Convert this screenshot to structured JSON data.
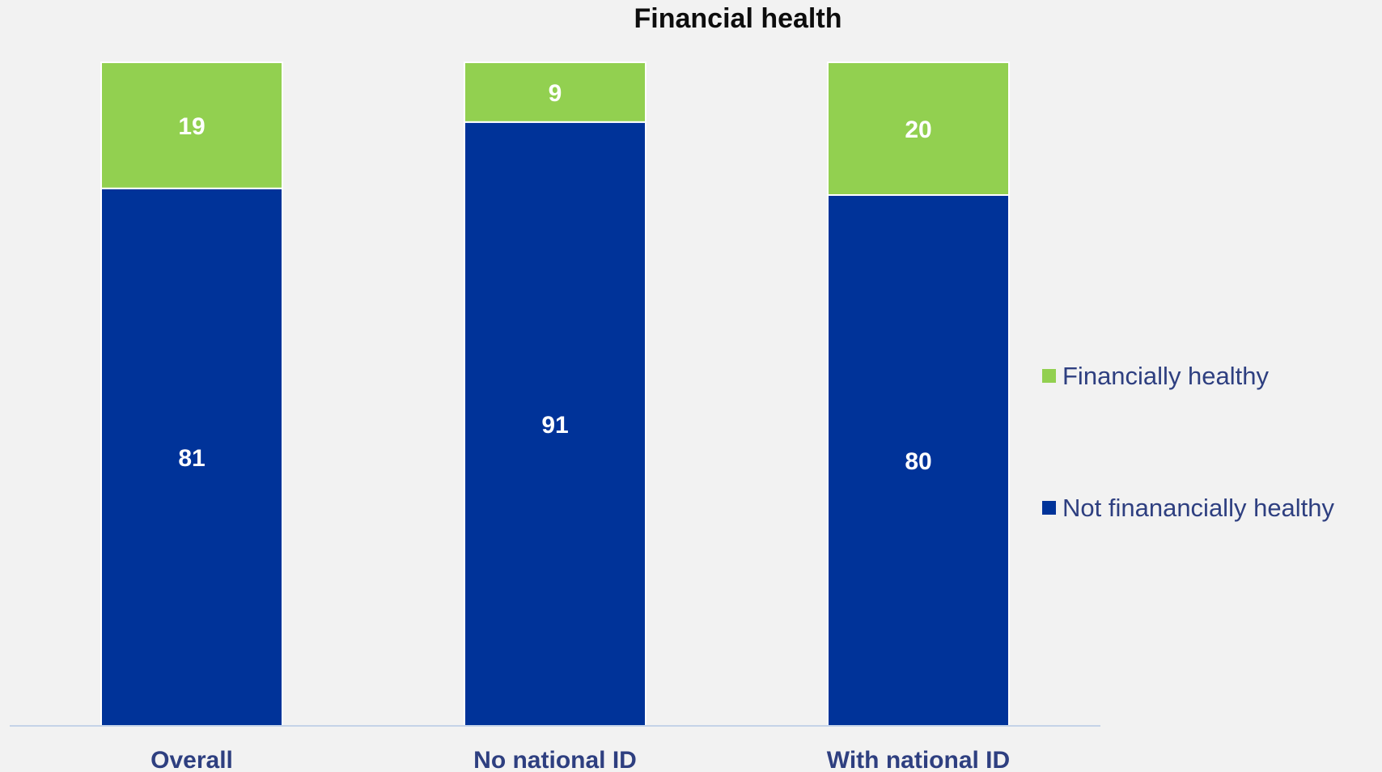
{
  "chart_data": {
    "type": "bar",
    "stacked": true,
    "title": "Financial health",
    "categories": [
      "Overall",
      "No national ID",
      "With national ID"
    ],
    "series": [
      {
        "name": "Not finanancially healthy",
        "values": [
          81,
          91,
          80
        ],
        "color": "#003399"
      },
      {
        "name": "Financially healthy",
        "values": [
          19,
          9,
          20
        ],
        "color": "#92d050"
      }
    ],
    "ylim": [
      0,
      100
    ],
    "grid": false,
    "legend": {
      "position": "right",
      "order": [
        "Financially healthy",
        "Not finanancially healthy"
      ]
    },
    "axis_color": "#c5d3e8"
  }
}
